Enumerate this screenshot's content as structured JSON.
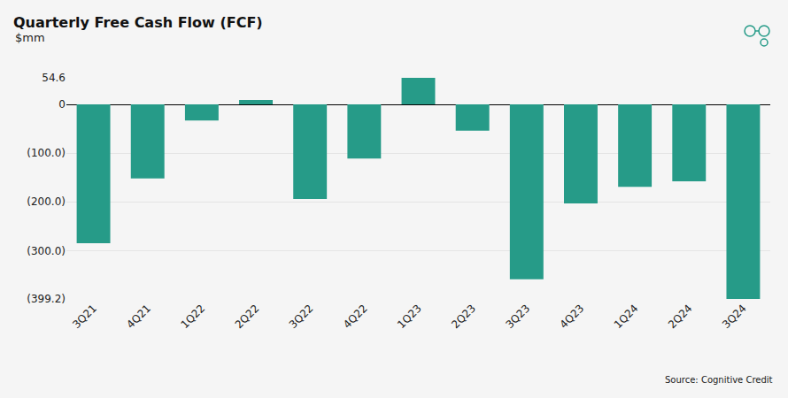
{
  "chart_data": {
    "type": "bar",
    "title": "Quarterly Free Cash Flow (FCF)",
    "subtitle": "$mm",
    "source": "Source: Cognitive Credit",
    "categories": [
      "3Q21",
      "4Q21",
      "1Q22",
      "2Q22",
      "3Q22",
      "4Q22",
      "1Q23",
      "2Q23",
      "3Q23",
      "4Q23",
      "1Q24",
      "2Q24",
      "3Q24"
    ],
    "values": [
      -285,
      -152,
      -33,
      9,
      -194,
      -111,
      54.6,
      -54,
      -359,
      -203,
      -169,
      -158,
      -399.2
    ],
    "color": "#269b88",
    "ylim": [
      -399.2,
      54.6
    ],
    "yticks": [
      54.6,
      0,
      {
        "value": -100,
        "label": "(100.0)"
      },
      {
        "value": -200,
        "label": "(200.0)"
      },
      {
        "value": -300,
        "label": "(300.0)"
      },
      {
        "value": -399.2,
        "label": "(399.2)"
      }
    ],
    "grid": true
  }
}
